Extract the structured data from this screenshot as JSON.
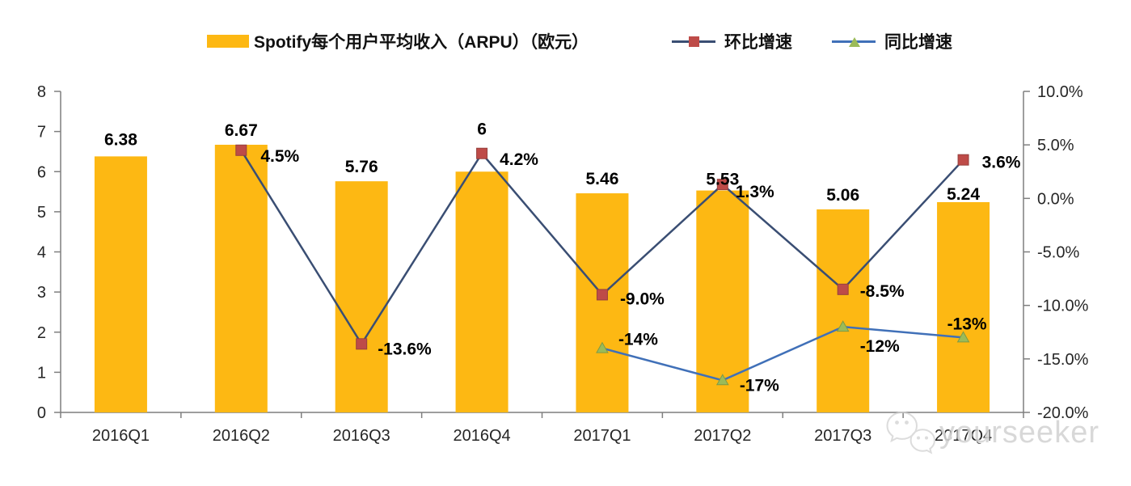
{
  "legend": {
    "bar": "Spotify每个用户平均收入（ARPU）（欧元）",
    "qoq": "环比增速",
    "yoy": "同比增速"
  },
  "watermark": {
    "text": "yourseeker"
  },
  "colors": {
    "bar": "#FDB813",
    "qoq_line": "#3A4E73",
    "qoq_marker": "#BE4B48",
    "yoy_line": "#4070B8",
    "yoy_marker": "#9BBB59",
    "axis": "#7F7F7F",
    "data_label": "#000000",
    "axis_label": "#262626"
  },
  "chart_data": {
    "type": "bar+line combo, dual axis",
    "title": "",
    "categories": [
      "2016Q1",
      "2016Q2",
      "2016Q3",
      "2016Q4",
      "2017Q1",
      "2017Q2",
      "2017Q3",
      "2017Q4"
    ],
    "series": [
      {
        "name": "Spotify每个用户平均收入（ARPU）（欧元）",
        "type": "bar",
        "axis": "left",
        "values": [
          6.38,
          6.67,
          5.76,
          6,
          5.46,
          5.53,
          5.06,
          5.24
        ],
        "labels": [
          "6.38",
          "6.67",
          "5.76",
          "6",
          "5.46",
          "5.53",
          "5.06",
          "5.24"
        ]
      },
      {
        "name": "环比增速",
        "type": "line",
        "marker": "square",
        "axis": "right",
        "values": [
          null,
          4.5,
          -13.6,
          4.2,
          -9.0,
          1.3,
          -8.5,
          3.6
        ],
        "labels": [
          null,
          "4.5%",
          "-13.6%",
          "4.2%",
          "-9.0%",
          "1.3%",
          "-8.5%",
          "3.6%"
        ]
      },
      {
        "name": "同比增速",
        "type": "line",
        "marker": "triangle",
        "axis": "right",
        "values": [
          null,
          null,
          null,
          null,
          -14,
          -17,
          -12,
          -13
        ],
        "labels": [
          null,
          null,
          null,
          null,
          "-14%",
          "-17%",
          "-12%",
          "-13%"
        ]
      }
    ],
    "left_axis": {
      "range": [
        0,
        8
      ],
      "tick_values": [
        0,
        1,
        2,
        3,
        4,
        5,
        6,
        7,
        8
      ],
      "tick_labels": [
        "0",
        "1",
        "2",
        "3",
        "4",
        "5",
        "6",
        "7",
        "8"
      ]
    },
    "right_axis": {
      "range": [
        -20,
        10
      ],
      "tick_values": [
        10,
        5,
        0,
        -5,
        -10,
        -15,
        -20
      ],
      "tick_labels": [
        "10.0%",
        "5.0%",
        "0.0%",
        "-5.0%",
        "-10.0%",
        "-15.0%",
        "-20.0%"
      ]
    },
    "grid": false,
    "legend_position": "top",
    "label_offsets": {
      "bar_dy": [
        -14,
        -11,
        -11,
        -46,
        -11,
        -7,
        -11,
        -3
      ],
      "qoq": [
        null,
        [
          24,
          14
        ],
        [
          20,
          13
        ],
        [
          22,
          14
        ],
        [
          22,
          12
        ],
        [
          16,
          16
        ],
        [
          21,
          9
        ],
        [
          23,
          10
        ]
      ],
      "yoy": [
        null,
        null,
        null,
        null,
        [
          20,
          -4
        ],
        [
          21,
          13
        ],
        [
          21,
          31
        ],
        [
          -20,
          -10
        ]
      ]
    }
  }
}
